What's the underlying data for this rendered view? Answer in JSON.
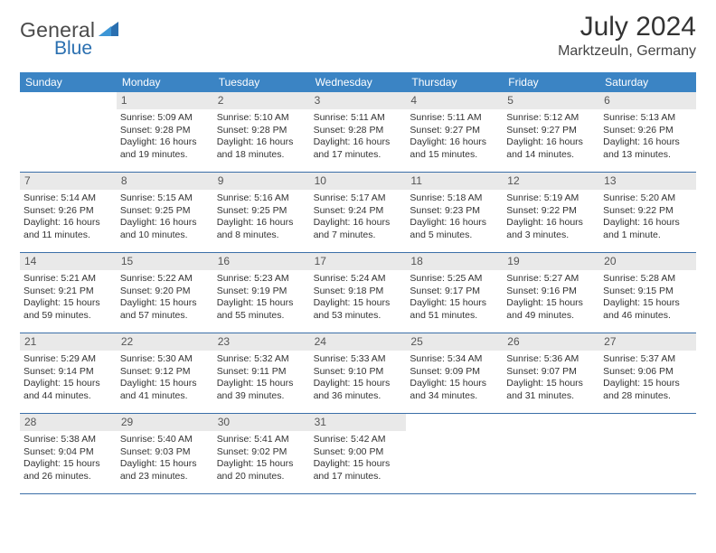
{
  "logo": {
    "text_gray": "General",
    "text_blue": "Blue",
    "triangle_color": "#2a6fb0"
  },
  "header": {
    "month_title": "July 2024",
    "location": "Marktzeuln, Germany"
  },
  "calendar": {
    "type": "table",
    "weekday_bg": "#3b84c4",
    "weekday_fg": "#ffffff",
    "daynum_bg": "#e9e9e9",
    "rule_color": "#3b6fa8",
    "weekdays": [
      "Sunday",
      "Monday",
      "Tuesday",
      "Wednesday",
      "Thursday",
      "Friday",
      "Saturday"
    ],
    "weeks": [
      [
        {
          "num": "",
          "sunrise": "",
          "sunset": "",
          "daylight1": "",
          "daylight2": "",
          "empty": true
        },
        {
          "num": "1",
          "sunrise": "Sunrise: 5:09 AM",
          "sunset": "Sunset: 9:28 PM",
          "daylight1": "Daylight: 16 hours",
          "daylight2": "and 19 minutes."
        },
        {
          "num": "2",
          "sunrise": "Sunrise: 5:10 AM",
          "sunset": "Sunset: 9:28 PM",
          "daylight1": "Daylight: 16 hours",
          "daylight2": "and 18 minutes."
        },
        {
          "num": "3",
          "sunrise": "Sunrise: 5:11 AM",
          "sunset": "Sunset: 9:28 PM",
          "daylight1": "Daylight: 16 hours",
          "daylight2": "and 17 minutes."
        },
        {
          "num": "4",
          "sunrise": "Sunrise: 5:11 AM",
          "sunset": "Sunset: 9:27 PM",
          "daylight1": "Daylight: 16 hours",
          "daylight2": "and 15 minutes."
        },
        {
          "num": "5",
          "sunrise": "Sunrise: 5:12 AM",
          "sunset": "Sunset: 9:27 PM",
          "daylight1": "Daylight: 16 hours",
          "daylight2": "and 14 minutes."
        },
        {
          "num": "6",
          "sunrise": "Sunrise: 5:13 AM",
          "sunset": "Sunset: 9:26 PM",
          "daylight1": "Daylight: 16 hours",
          "daylight2": "and 13 minutes."
        }
      ],
      [
        {
          "num": "7",
          "sunrise": "Sunrise: 5:14 AM",
          "sunset": "Sunset: 9:26 PM",
          "daylight1": "Daylight: 16 hours",
          "daylight2": "and 11 minutes."
        },
        {
          "num": "8",
          "sunrise": "Sunrise: 5:15 AM",
          "sunset": "Sunset: 9:25 PM",
          "daylight1": "Daylight: 16 hours",
          "daylight2": "and 10 minutes."
        },
        {
          "num": "9",
          "sunrise": "Sunrise: 5:16 AM",
          "sunset": "Sunset: 9:25 PM",
          "daylight1": "Daylight: 16 hours",
          "daylight2": "and 8 minutes."
        },
        {
          "num": "10",
          "sunrise": "Sunrise: 5:17 AM",
          "sunset": "Sunset: 9:24 PM",
          "daylight1": "Daylight: 16 hours",
          "daylight2": "and 7 minutes."
        },
        {
          "num": "11",
          "sunrise": "Sunrise: 5:18 AM",
          "sunset": "Sunset: 9:23 PM",
          "daylight1": "Daylight: 16 hours",
          "daylight2": "and 5 minutes."
        },
        {
          "num": "12",
          "sunrise": "Sunrise: 5:19 AM",
          "sunset": "Sunset: 9:22 PM",
          "daylight1": "Daylight: 16 hours",
          "daylight2": "and 3 minutes."
        },
        {
          "num": "13",
          "sunrise": "Sunrise: 5:20 AM",
          "sunset": "Sunset: 9:22 PM",
          "daylight1": "Daylight: 16 hours",
          "daylight2": "and 1 minute."
        }
      ],
      [
        {
          "num": "14",
          "sunrise": "Sunrise: 5:21 AM",
          "sunset": "Sunset: 9:21 PM",
          "daylight1": "Daylight: 15 hours",
          "daylight2": "and 59 minutes."
        },
        {
          "num": "15",
          "sunrise": "Sunrise: 5:22 AM",
          "sunset": "Sunset: 9:20 PM",
          "daylight1": "Daylight: 15 hours",
          "daylight2": "and 57 minutes."
        },
        {
          "num": "16",
          "sunrise": "Sunrise: 5:23 AM",
          "sunset": "Sunset: 9:19 PM",
          "daylight1": "Daylight: 15 hours",
          "daylight2": "and 55 minutes."
        },
        {
          "num": "17",
          "sunrise": "Sunrise: 5:24 AM",
          "sunset": "Sunset: 9:18 PM",
          "daylight1": "Daylight: 15 hours",
          "daylight2": "and 53 minutes."
        },
        {
          "num": "18",
          "sunrise": "Sunrise: 5:25 AM",
          "sunset": "Sunset: 9:17 PM",
          "daylight1": "Daylight: 15 hours",
          "daylight2": "and 51 minutes."
        },
        {
          "num": "19",
          "sunrise": "Sunrise: 5:27 AM",
          "sunset": "Sunset: 9:16 PM",
          "daylight1": "Daylight: 15 hours",
          "daylight2": "and 49 minutes."
        },
        {
          "num": "20",
          "sunrise": "Sunrise: 5:28 AM",
          "sunset": "Sunset: 9:15 PM",
          "daylight1": "Daylight: 15 hours",
          "daylight2": "and 46 minutes."
        }
      ],
      [
        {
          "num": "21",
          "sunrise": "Sunrise: 5:29 AM",
          "sunset": "Sunset: 9:14 PM",
          "daylight1": "Daylight: 15 hours",
          "daylight2": "and 44 minutes."
        },
        {
          "num": "22",
          "sunrise": "Sunrise: 5:30 AM",
          "sunset": "Sunset: 9:12 PM",
          "daylight1": "Daylight: 15 hours",
          "daylight2": "and 41 minutes."
        },
        {
          "num": "23",
          "sunrise": "Sunrise: 5:32 AM",
          "sunset": "Sunset: 9:11 PM",
          "daylight1": "Daylight: 15 hours",
          "daylight2": "and 39 minutes."
        },
        {
          "num": "24",
          "sunrise": "Sunrise: 5:33 AM",
          "sunset": "Sunset: 9:10 PM",
          "daylight1": "Daylight: 15 hours",
          "daylight2": "and 36 minutes."
        },
        {
          "num": "25",
          "sunrise": "Sunrise: 5:34 AM",
          "sunset": "Sunset: 9:09 PM",
          "daylight1": "Daylight: 15 hours",
          "daylight2": "and 34 minutes."
        },
        {
          "num": "26",
          "sunrise": "Sunrise: 5:36 AM",
          "sunset": "Sunset: 9:07 PM",
          "daylight1": "Daylight: 15 hours",
          "daylight2": "and 31 minutes."
        },
        {
          "num": "27",
          "sunrise": "Sunrise: 5:37 AM",
          "sunset": "Sunset: 9:06 PM",
          "daylight1": "Daylight: 15 hours",
          "daylight2": "and 28 minutes."
        }
      ],
      [
        {
          "num": "28",
          "sunrise": "Sunrise: 5:38 AM",
          "sunset": "Sunset: 9:04 PM",
          "daylight1": "Daylight: 15 hours",
          "daylight2": "and 26 minutes."
        },
        {
          "num": "29",
          "sunrise": "Sunrise: 5:40 AM",
          "sunset": "Sunset: 9:03 PM",
          "daylight1": "Daylight: 15 hours",
          "daylight2": "and 23 minutes."
        },
        {
          "num": "30",
          "sunrise": "Sunrise: 5:41 AM",
          "sunset": "Sunset: 9:02 PM",
          "daylight1": "Daylight: 15 hours",
          "daylight2": "and 20 minutes."
        },
        {
          "num": "31",
          "sunrise": "Sunrise: 5:42 AM",
          "sunset": "Sunset: 9:00 PM",
          "daylight1": "Daylight: 15 hours",
          "daylight2": "and 17 minutes."
        },
        {
          "num": "",
          "sunrise": "",
          "sunset": "",
          "daylight1": "",
          "daylight2": "",
          "empty": true
        },
        {
          "num": "",
          "sunrise": "",
          "sunset": "",
          "daylight1": "",
          "daylight2": "",
          "empty": true
        },
        {
          "num": "",
          "sunrise": "",
          "sunset": "",
          "daylight1": "",
          "daylight2": "",
          "empty": true
        }
      ]
    ]
  }
}
